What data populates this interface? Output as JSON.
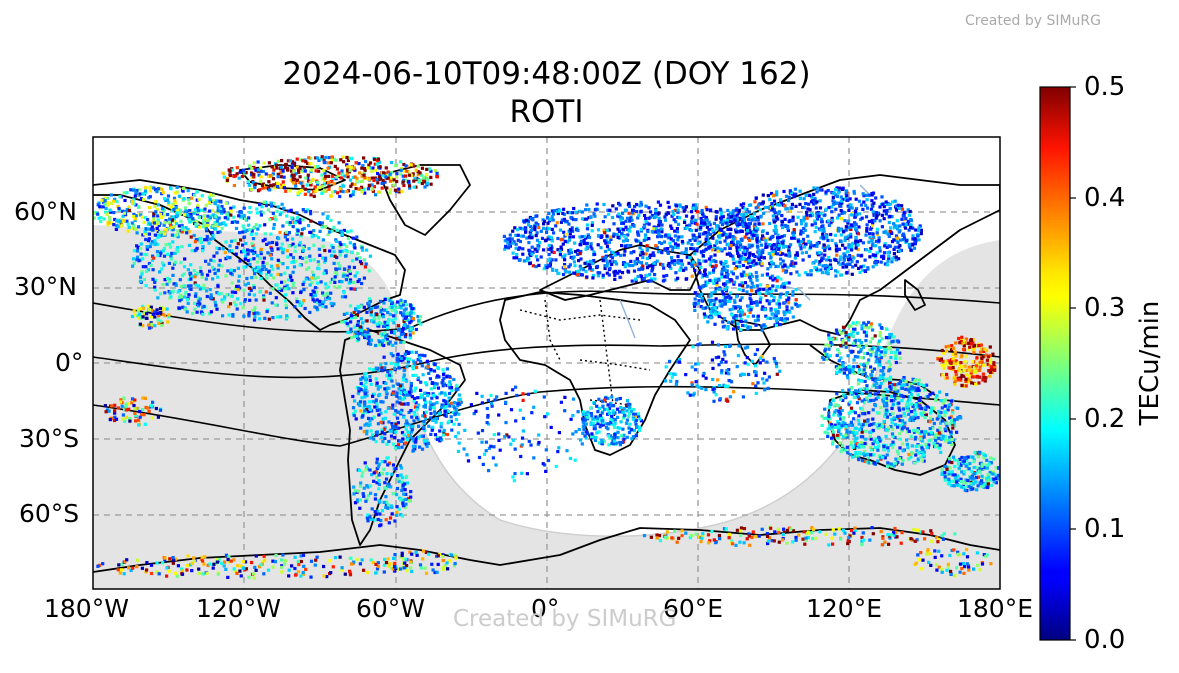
{
  "watermark": "Created by SIMuRG",
  "title": {
    "line1": "2024-06-10T09:48:00Z (DOY 162)",
    "line2": "ROTI"
  },
  "colorbar": {
    "label": "TECu/min",
    "colormap": "jet",
    "min": 0.0,
    "max": 0.5,
    "ticks": [
      "0.0",
      "0.1",
      "0.2",
      "0.3",
      "0.4",
      "0.5"
    ]
  },
  "map": {
    "projection": "PlateCarree",
    "lon_range": [
      -180,
      180
    ],
    "lat_range": [
      -90,
      90
    ],
    "lat_ticks": [
      {
        "label": "60°N",
        "value": 60
      },
      {
        "label": "30°N",
        "value": 30
      },
      {
        "label": "0°",
        "value": 0
      },
      {
        "label": "30°S",
        "value": -30
      },
      {
        "label": "60°S",
        "value": -60
      }
    ],
    "lon_ticks": [
      {
        "label": "180°W",
        "value": -180
      },
      {
        "label": "120°W",
        "value": -120
      },
      {
        "label": "60°W",
        "value": -60
      },
      {
        "label": "0°",
        "value": 0
      },
      {
        "label": "60°E",
        "value": 60
      },
      {
        "label": "120°E",
        "value": 120
      },
      {
        "label": "180°E",
        "value": 180
      }
    ],
    "gridlines": true,
    "night_shading": "#e4e4e4",
    "coastline_color": "#000000",
    "point_color_note": "jet",
    "magnetic_equator_lines": 3
  }
}
